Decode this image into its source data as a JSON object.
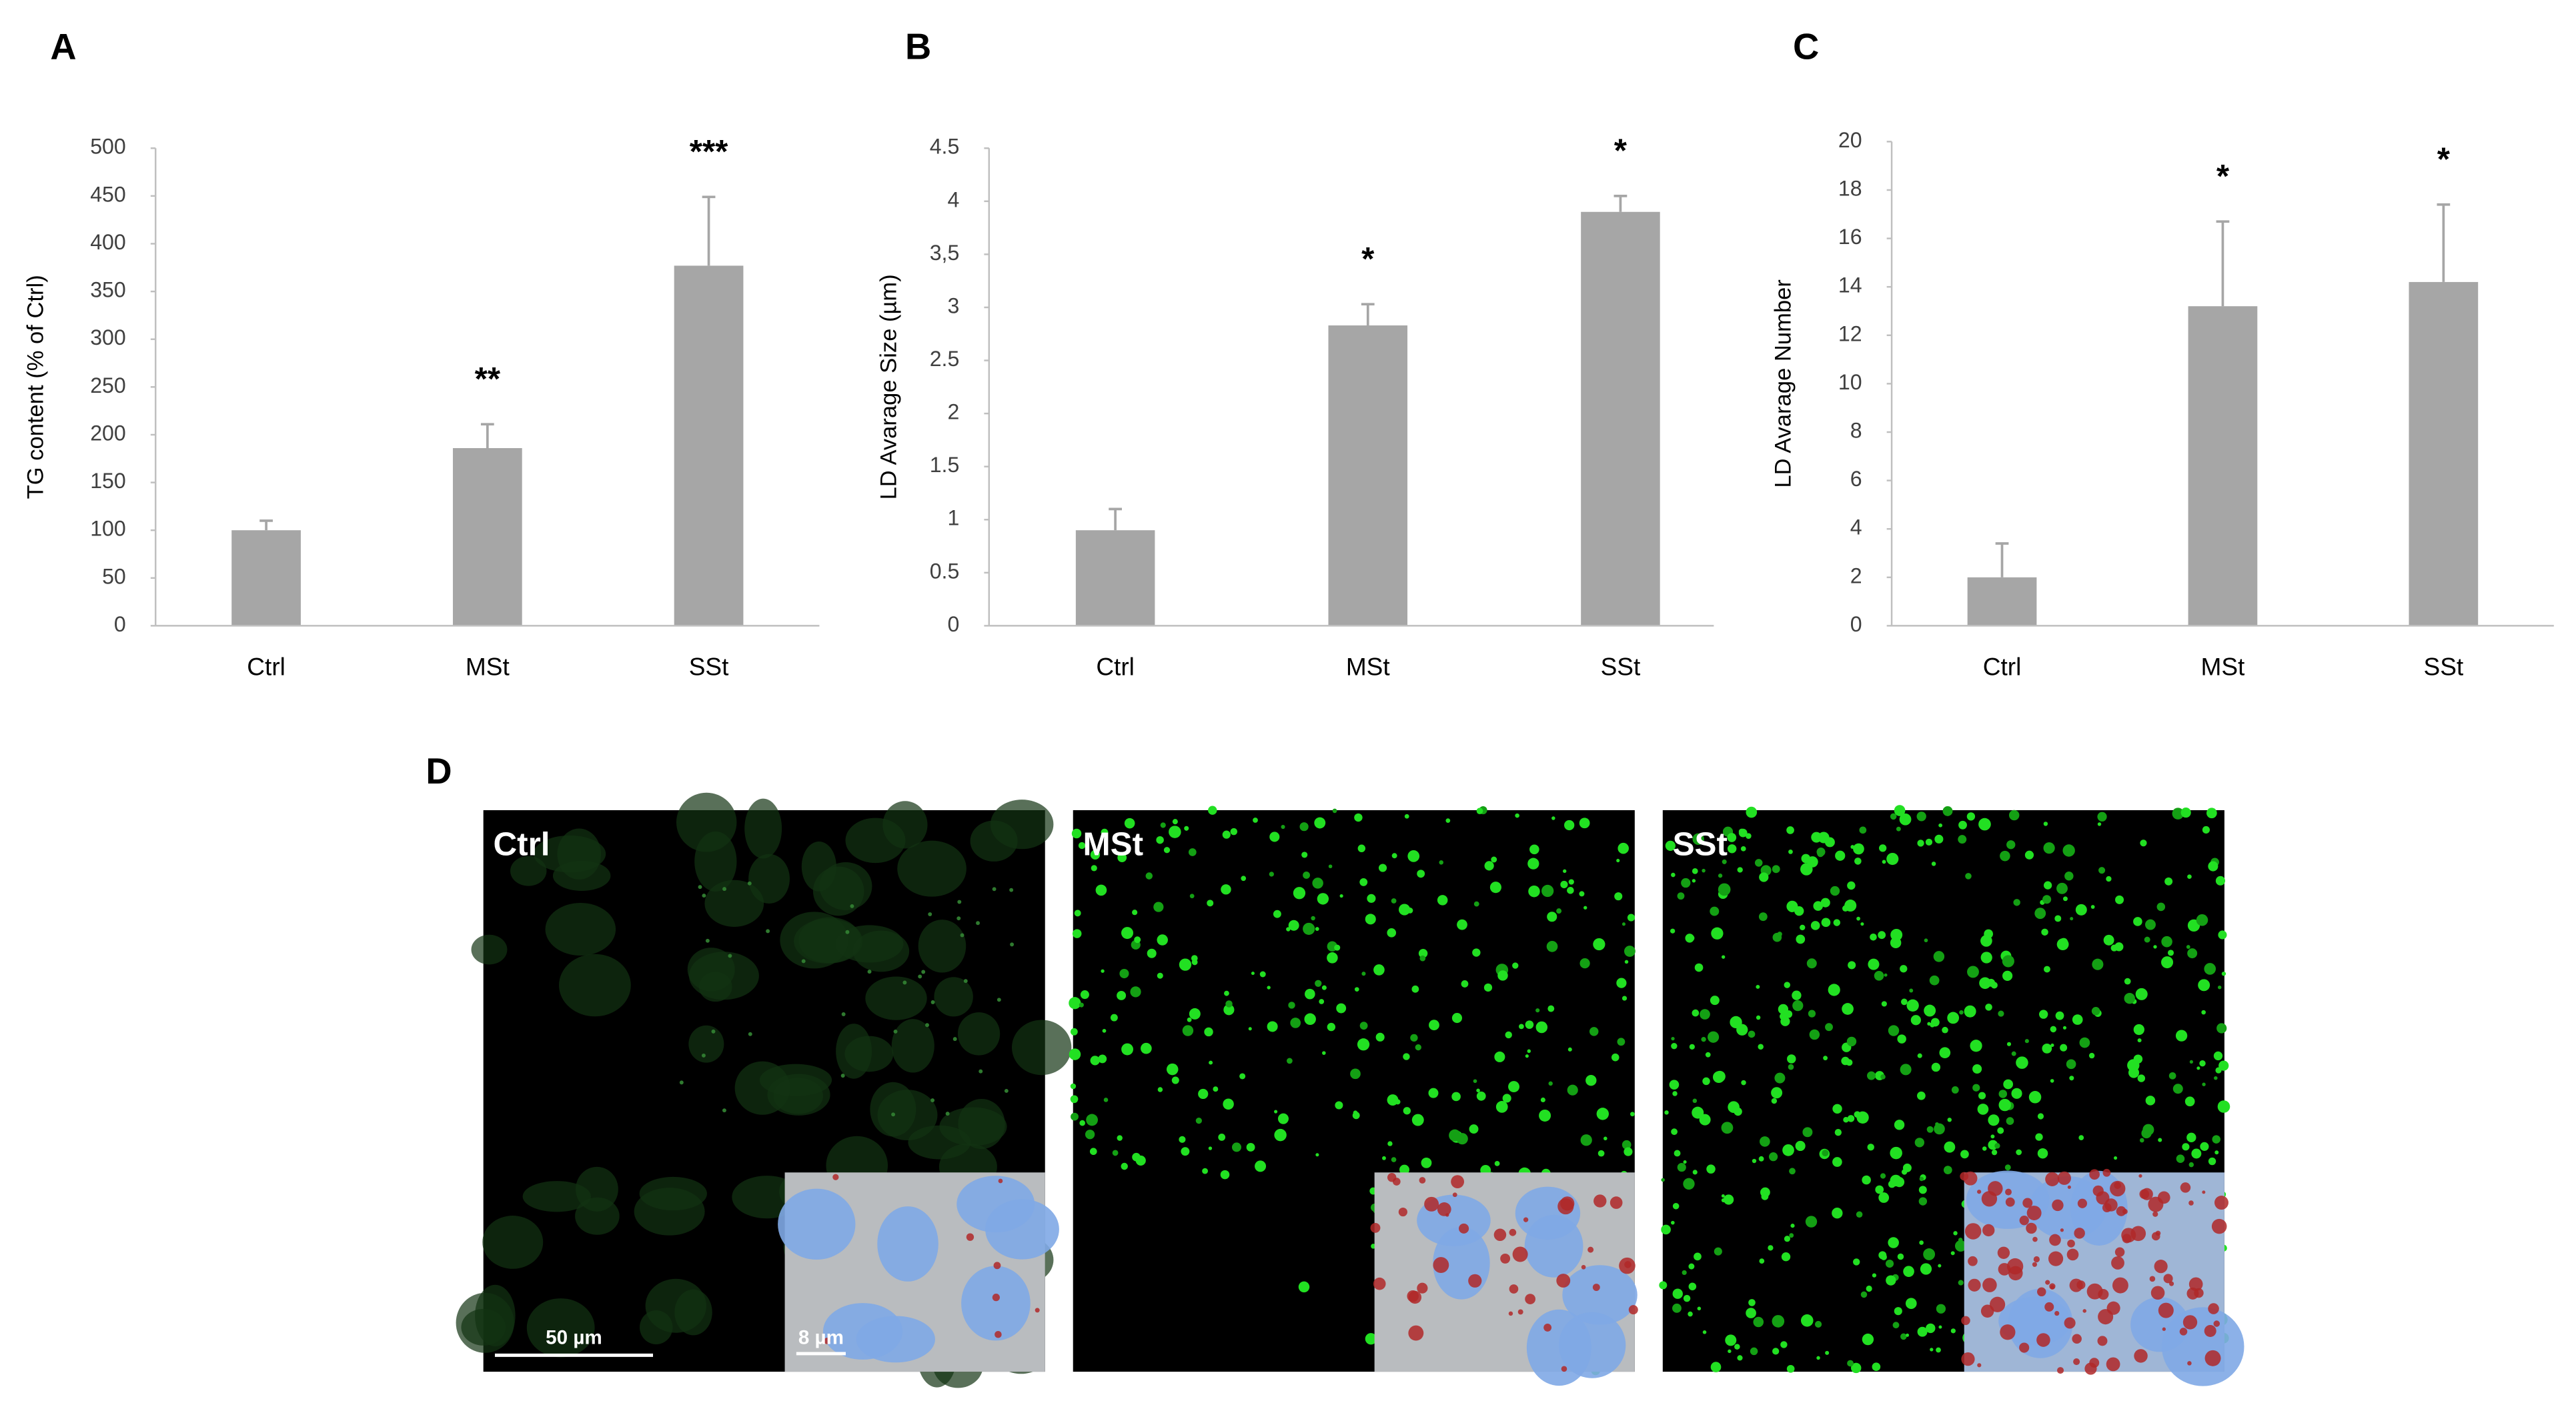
{
  "chart_data": [
    {
      "type": "bar",
      "panel": "A",
      "ylabel": "TG content (% of Ctrl)",
      "categories": [
        "Ctrl",
        "MSt",
        "SSt"
      ],
      "values": [
        100,
        186,
        377
      ],
      "errors": [
        10,
        25,
        72
      ],
      "annotations": [
        {
          "category": "MSt",
          "text": "**"
        },
        {
          "category": "SSt",
          "text": "***"
        }
      ],
      "color": "#a6a6a6",
      "ylim": [
        0,
        500
      ],
      "yticks": [
        0,
        50,
        100,
        150,
        200,
        250,
        300,
        350,
        400,
        450,
        500
      ]
    },
    {
      "type": "bar",
      "panel": "B",
      "ylabel": "LD Avarage Size (µm)",
      "categories": [
        "Ctrl",
        "MSt",
        "SSt"
      ],
      "values": [
        0.9,
        2.83,
        3.9
      ],
      "errors": [
        0.2,
        0.2,
        0.15
      ],
      "annotations": [
        {
          "category": "MSt",
          "text": "*"
        },
        {
          "category": "SSt",
          "text": "*"
        }
      ],
      "color": "#a6a6a6",
      "ylim": [
        0,
        4.5
      ],
      "yticks": [
        0,
        0.5,
        1,
        1.5,
        2,
        2.5,
        3,
        {
          "value": 3.5,
          "label": "3,5"
        },
        4,
        4.5
      ]
    },
    {
      "type": "bar",
      "panel": "C",
      "ylabel": "LD Avarage Number",
      "categories": [
        "Ctrl",
        "MSt",
        "SSt"
      ],
      "values": [
        2,
        13.2,
        14.2
      ],
      "errors": [
        1.4,
        3.5,
        3.2
      ],
      "annotations": [
        {
          "category": "MSt",
          "text": "*"
        },
        {
          "category": "SSt",
          "text": "*"
        }
      ],
      "color": "#a6a6a6",
      "ylim": [
        0,
        20
      ],
      "yticks": [
        0,
        2,
        4,
        6,
        8,
        10,
        12,
        14,
        16,
        18,
        20
      ]
    }
  ],
  "panel_d": {
    "label": "D",
    "images": [
      {
        "label": "Ctrl"
      },
      {
        "label": "MSt"
      },
      {
        "label": "SSt"
      }
    ],
    "scale_bar": "50 µm",
    "inset_scale_bar": "8 µm"
  }
}
